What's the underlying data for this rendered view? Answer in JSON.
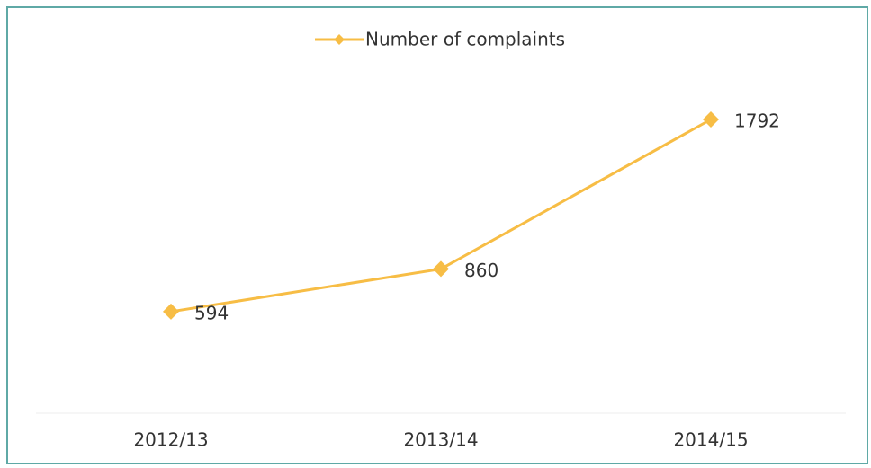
{
  "chart_data": {
    "type": "line",
    "categories": [
      "2012/13",
      "2013/14",
      "2014/15"
    ],
    "series": [
      {
        "name": "Number of complaints",
        "color": "#f7bd45",
        "values": [
          594,
          860,
          1792
        ]
      }
    ]
  }
}
